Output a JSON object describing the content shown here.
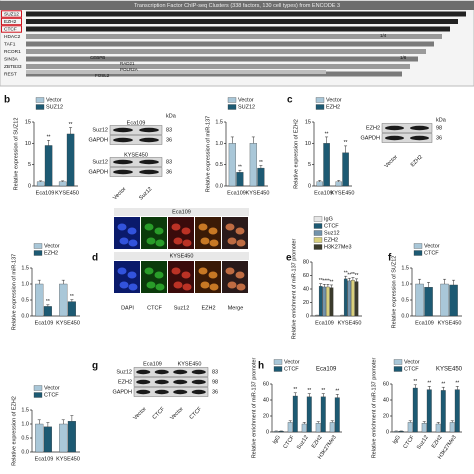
{
  "chart_data": [
    {
      "type": "bar",
      "ylabel": "Relative expression of SUZ12",
      "categories": [
        "Eca109",
        "KYSE450"
      ],
      "series": [
        {
          "name": "Vector",
          "color": "#a9c7d8",
          "values": [
            1,
            1
          ],
          "errors": [
            0.2,
            0.2
          ],
          "sig": [
            null,
            null
          ]
        },
        {
          "name": "SUZ12",
          "color": "#1d5a73",
          "values": [
            9.5,
            12.2
          ],
          "errors": [
            1.2,
            1.5
          ],
          "sig": [
            "**",
            "**"
          ]
        }
      ],
      "ylim": [
        0,
        15
      ],
      "yticks": [
        0,
        5,
        10,
        15
      ]
    },
    {
      "type": "bar",
      "ylabel": "Relative expression of miR-137",
      "categories": [
        "Eca109",
        "KYSE450"
      ],
      "series": [
        {
          "name": "Vector",
          "color": "#a9c7d8",
          "values": [
            1,
            1
          ],
          "errors": [
            0.15,
            0.15
          ],
          "sig": [
            null,
            null
          ]
        },
        {
          "name": "SUZ12",
          "color": "#1d5a73",
          "values": [
            0.32,
            0.42
          ],
          "errors": [
            0.05,
            0.06
          ],
          "sig": [
            "**",
            "**"
          ]
        }
      ],
      "ylim": [
        0,
        1.5
      ],
      "yticks": [
        {
          "value": 0,
          "label": "0.0"
        },
        0.5,
        {
          "value": 1,
          "label": "1.0"
        },
        1.5
      ]
    },
    {
      "type": "bar",
      "ylabel": "Relative expression of EZH2",
      "categories": [
        "Eca109",
        "KYSE450"
      ],
      "series": [
        {
          "name": "Vector",
          "color": "#a9c7d8",
          "values": [
            1,
            1
          ],
          "errors": [
            0.3,
            0.3
          ],
          "sig": [
            null,
            null
          ]
        },
        {
          "name": "EZH2",
          "color": "#1d5a73",
          "values": [
            10,
            7.8
          ],
          "errors": [
            1.5,
            1.6
          ],
          "sig": [
            "**",
            "**"
          ]
        }
      ],
      "ylim": [
        0,
        15
      ],
      "yticks": [
        0,
        5,
        10,
        15
      ]
    },
    {
      "type": "bar",
      "ylabel": "Relative expression of miR-137",
      "categories": [
        "Eca109",
        "KYSE450"
      ],
      "series": [
        {
          "name": "Vector",
          "color": "#a9c7d8",
          "values": [
            1,
            1
          ],
          "errors": [
            0.12,
            0.12
          ],
          "sig": [
            null,
            null
          ]
        },
        {
          "name": "EZH2",
          "color": "#1d5a73",
          "values": [
            0.3,
            0.45
          ],
          "errors": [
            0.05,
            0.06
          ],
          "sig": [
            "**",
            "**"
          ]
        }
      ],
      "ylim": [
        0,
        1.5
      ],
      "yticks": [
        {
          "value": 0,
          "label": "0.0"
        },
        0.5,
        {
          "value": 1,
          "label": "1.0"
        },
        1.5
      ]
    },
    {
      "type": "bar",
      "ylabel": "Relative enrichment of miR-137 promoter",
      "categories": [
        "Eca109",
        "KYSE450"
      ],
      "series": [
        {
          "name": "IgG",
          "color": "#e6e6e6",
          "values": [
            1,
            1
          ],
          "errors": [
            0.3,
            0.3
          ],
          "sig": [
            null,
            null
          ]
        },
        {
          "name": "CTCF",
          "color": "#1d5a73",
          "values": [
            44,
            55
          ],
          "errors": [
            4,
            4
          ],
          "sig": [
            "**",
            "**"
          ]
        },
        {
          "name": "Suz12",
          "color": "#7393ab",
          "values": [
            43,
            52
          ],
          "errors": [
            4,
            4
          ],
          "sig": [
            "**",
            "**"
          ]
        },
        {
          "name": "EZH2",
          "color": "#d9d07c",
          "values": [
            43,
            53
          ],
          "errors": [
            4,
            4
          ],
          "sig": [
            "**",
            "**"
          ]
        },
        {
          "name": "H3K27Me3",
          "color": "#3b3b2c",
          "values": [
            42,
            51
          ],
          "errors": [
            4,
            4
          ],
          "sig": [
            "**",
            "**"
          ]
        }
      ],
      "ylim": [
        0,
        80
      ],
      "yticks": [
        0,
        20,
        40,
        60,
        80
      ]
    },
    {
      "type": "bar",
      "ylabel": "Relative expression of SUZ12",
      "categories": [
        "Eca109",
        "KYSE450"
      ],
      "series": [
        {
          "name": "Vector",
          "color": "#a9c7d8",
          "values": [
            1,
            1
          ],
          "errors": [
            0.15,
            0.15
          ],
          "sig": [
            null,
            null
          ]
        },
        {
          "name": "CTCF",
          "color": "#1d5a73",
          "values": [
            0.9,
            0.97
          ],
          "errors": [
            0.15,
            0.15
          ],
          "sig": [
            null,
            null
          ]
        }
      ],
      "ylim": [
        0,
        1.5
      ],
      "yticks": [
        {
          "value": 0,
          "label": "0.0"
        },
        0.5,
        {
          "value": 1,
          "label": "1.0"
        },
        1.5
      ]
    },
    {
      "type": "bar",
      "ylabel": "Relative expression of EZH2",
      "categories": [
        "Eca109",
        "KYSE450"
      ],
      "series": [
        {
          "name": "Vector",
          "color": "#a9c7d8",
          "values": [
            1,
            1
          ],
          "errors": [
            0.15,
            0.15
          ],
          "sig": [
            null,
            null
          ]
        },
        {
          "name": "CTCF",
          "color": "#1d5a73",
          "values": [
            0.9,
            1.1
          ],
          "errors": [
            0.15,
            0.2
          ],
          "sig": [
            null,
            null
          ]
        }
      ],
      "ylim": [
        0,
        1.5
      ],
      "yticks": [
        {
          "value": 0,
          "label": "0.0"
        },
        0.5,
        {
          "value": 1,
          "label": "1.0"
        },
        1.5
      ]
    },
    {
      "type": "bar",
      "title": "Eca109",
      "ylabel": "Relative enrichment of miR-137 promoter",
      "categories": [
        "IgG",
        "CTCF",
        "Suz12",
        "EZH2",
        "H3K27Me3"
      ],
      "series": [
        {
          "name": "Vector",
          "color": "#a9c7d8",
          "values": [
            1,
            12,
            10,
            11,
            12
          ],
          "errors": [
            0.3,
            2,
            2,
            2,
            2
          ],
          "sig": [
            null,
            null,
            null,
            null,
            null
          ]
        },
        {
          "name": "CTCF",
          "color": "#1d5a73",
          "values": [
            1,
            45,
            44,
            44,
            43
          ],
          "errors": [
            0.3,
            4,
            4,
            4,
            4
          ],
          "sig": [
            null,
            "**",
            "**",
            "**",
            "**"
          ]
        }
      ],
      "ylim": [
        0,
        60
      ],
      "yticks": [
        0,
        20,
        40,
        60
      ]
    },
    {
      "type": "bar",
      "title": "KYSE450",
      "ylabel": "Relative enrichment of miR-137 promoter",
      "categories": [
        "IgG",
        "CTCF",
        "Suz12",
        "EZH2",
        "H3K27Me3"
      ],
      "series": [
        {
          "name": "Vector",
          "color": "#a9c7d8",
          "values": [
            1,
            12,
            11,
            10,
            12
          ],
          "errors": [
            0.3,
            2,
            2,
            2,
            2
          ],
          "sig": [
            null,
            null,
            null,
            null,
            null
          ]
        },
        {
          "name": "CTCF",
          "color": "#1d5a73",
          "values": [
            1,
            55,
            53,
            52,
            53
          ],
          "errors": [
            0.3,
            4,
            4,
            4,
            4
          ],
          "sig": [
            null,
            "**",
            "**",
            "**",
            "**"
          ]
        }
      ],
      "ylim": [
        0,
        60
      ],
      "yticks": [
        0,
        20,
        40,
        60
      ]
    }
  ],
  "panel_letters": [
    "b",
    "c",
    "d",
    "e",
    "f",
    "g",
    "h"
  ],
  "browser": {
    "title": "Transcription Factor ChIP-seq Clusters (338 factors, 130 cell types) from ENCODE 3",
    "tracks": [
      "SUZ12",
      "EZH2",
      "CTCF",
      "HDAC2",
      "TAF1",
      "RCOR1",
      "SIN3A",
      "ZBTB33",
      "REST"
    ],
    "notes": [
      "1/4",
      "CEBPB",
      "RAD21",
      "POLR2A",
      "FOSL2",
      "1/6"
    ]
  },
  "blots": [
    {
      "kda_header": "kDa",
      "panels": [
        {
          "title": "Eca109",
          "rows": [
            {
              "label": "Suz12",
              "kda": 83
            },
            {
              "label": "GAPDH",
              "kda": 36
            }
          ]
        },
        {
          "title": "KYSE450",
          "rows": [
            {
              "label": "Suz12",
              "kda": 83
            },
            {
              "label": "GAPDH",
              "kda": 36
            }
          ]
        }
      ],
      "lanes": [
        "Vector",
        "Suz12"
      ]
    },
    {
      "kda_header": "kDa",
      "panels": [
        {
          "rows": [
            {
              "label": "EZH2",
              "kda": 98
            },
            {
              "label": "GAPDH",
              "kda": 36
            }
          ]
        }
      ],
      "lanes": [
        "Vector",
        "EZH2"
      ]
    },
    {
      "titles": [
        "Eca109",
        "KYSE450"
      ],
      "panels": [
        {
          "rows": [
            {
              "label": "Suz12",
              "kda": 83
            },
            {
              "label": "EZH2",
              "kda": 98
            },
            {
              "label": "GAPDH",
              "kda": 36
            }
          ]
        }
      ],
      "lanes": [
        "Vector",
        "CTCF",
        "Vector",
        "CTCF"
      ]
    }
  ],
  "microscopy": {
    "rows": [
      "Eca109",
      "KYSE450"
    ],
    "columns": [
      "DAPI",
      "CTCF",
      "Suz12",
      "EZH2",
      "Merge"
    ]
  }
}
